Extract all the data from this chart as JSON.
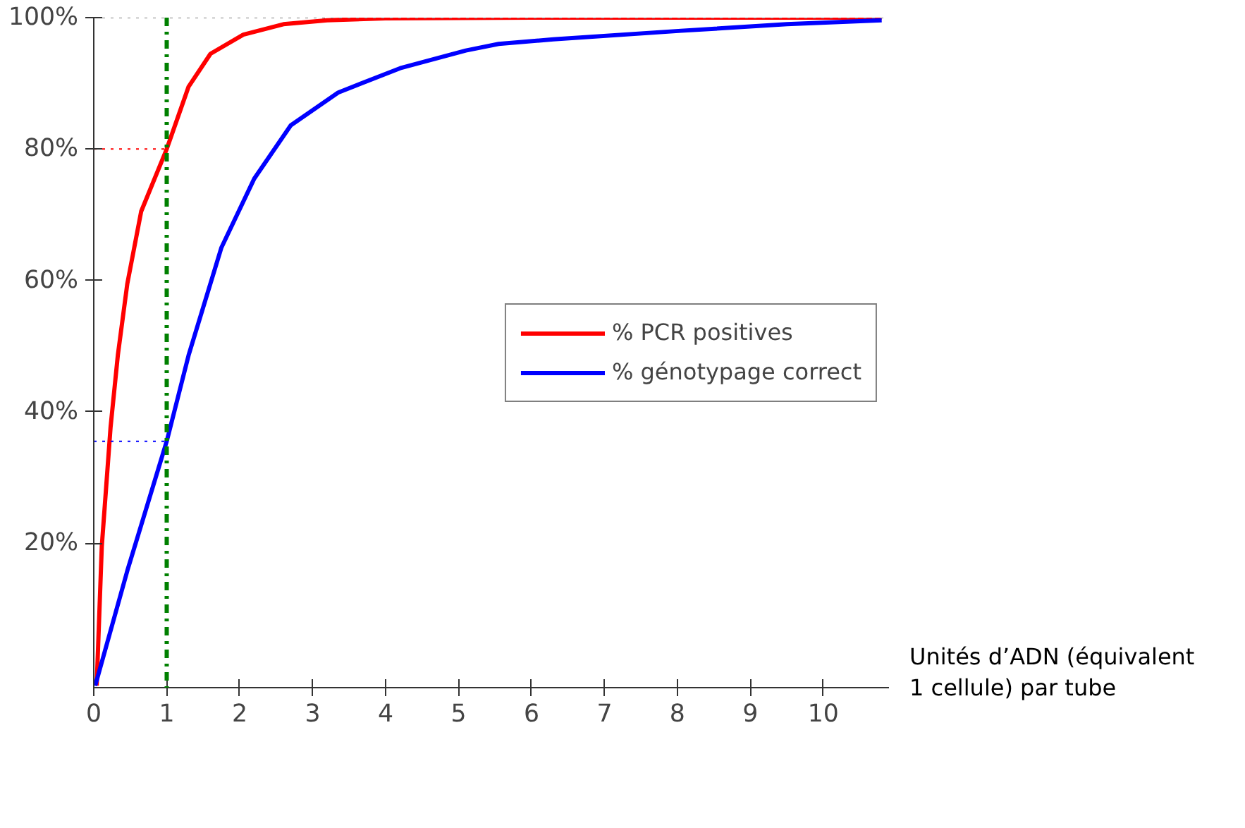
{
  "chart_data": {
    "type": "line",
    "xlabel": "Unités d’ADN (équivalent\n1 cellule) par tube",
    "xlim": [
      0,
      10.9
    ],
    "ylim": [
      -2,
      100
    ],
    "xticks": [
      0,
      1,
      2,
      3,
      4,
      5,
      6,
      7,
      8,
      9,
      10
    ],
    "yticks": [
      {
        "value": 20,
        "label": "20%"
      },
      {
        "value": 40,
        "label": "40%"
      },
      {
        "value": 60,
        "label": "60%"
      },
      {
        "value": 80,
        "label": "80%"
      },
      {
        "value": 100,
        "label": "100%"
      }
    ],
    "grid": false,
    "legend": "right",
    "line_style": "solid",
    "marker": "none",
    "series": [
      {
        "name": "% PCR positives",
        "color": "#ff0000",
        "x": [
          0.04,
          0.11,
          0.23,
          0.33,
          0.46,
          0.65,
          1,
          1.3,
          1.6,
          2.05,
          2.6,
          3.2,
          4,
          6,
          8,
          10.8
        ],
        "values": [
          -1.7,
          19.5,
          37.6,
          48.6,
          59.5,
          70.5,
          80,
          89.5,
          94.5,
          97.4,
          99,
          99.6,
          99.9,
          100,
          100,
          100
        ]
      },
      {
        "name": "% génotypage correct",
        "color": "#0000ff",
        "x": [
          0.02,
          0.46,
          1,
          1.3,
          1.75,
          2.2,
          2.7,
          3.35,
          4.2,
          5.1,
          5.55,
          6.3,
          8.05,
          9.5,
          10.8
        ],
        "values": [
          -1.7,
          15.8,
          35.5,
          48.6,
          65,
          75.5,
          83.6,
          88.6,
          92.3,
          95,
          96,
          96.7,
          98,
          99,
          99.6
        ]
      }
    ],
    "ref_lines": [
      {
        "axis": "x",
        "value": 1,
        "color": "#008000",
        "line_style": "dashed"
      },
      {
        "axis": "y",
        "value": 80,
        "color": "#ff0000",
        "line_style": "dotted"
      },
      {
        "axis": "y",
        "value": 35.5,
        "color": "#0000ff",
        "line_style": "dotted"
      },
      {
        "axis": "y",
        "value": 100,
        "color": "#808080",
        "line_style": "dotted"
      }
    ]
  }
}
